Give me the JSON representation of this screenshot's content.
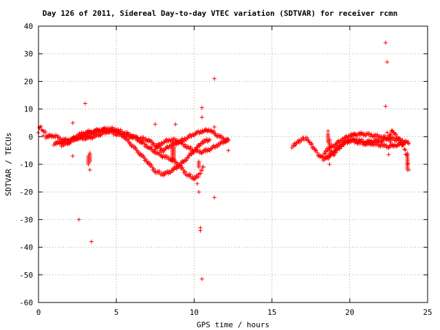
{
  "chart_data": {
    "type": "scatter",
    "title": "Day 126 of 2011, Sidereal Day-to-day VTEC variation (SDTVAR) for receiver rcmn",
    "xlabel": "GPS time / hours",
    "ylabel": "SDTVAR / TECUs",
    "xlim": [
      0,
      25
    ],
    "ylim": [
      -60,
      40
    ],
    "xticks": [
      0,
      5,
      10,
      15,
      20,
      25
    ],
    "yticks": [
      -60,
      -50,
      -40,
      -30,
      -20,
      -10,
      0,
      10,
      20,
      30,
      40
    ],
    "grid": true,
    "legend": "none",
    "marker": "+",
    "series": [
      {
        "color": "#ff0000",
        "tracks": [
          [
            [
              0.0,
              2.0
            ],
            [
              0.1,
              4.0
            ],
            [
              0.2,
              3.0
            ],
            [
              0.3,
              1.0
            ],
            [
              0.4,
              2.5
            ],
            [
              0.5,
              0.0
            ]
          ],
          [
            [
              0.5,
              0.0
            ],
            [
              1.0,
              0.5
            ],
            [
              1.5,
              -1.0
            ],
            [
              2.0,
              -1.5
            ],
            [
              2.5,
              0.5
            ],
            [
              3.0,
              1.5
            ],
            [
              3.5,
              2.0
            ],
            [
              4.0,
              2.5
            ],
            [
              4.5,
              3.0
            ],
            [
              5.0,
              2.5
            ],
            [
              5.5,
              1.5
            ],
            [
              6.0,
              0.5
            ],
            [
              6.5,
              -1.5
            ],
            [
              7.0,
              -3.5
            ],
            [
              7.5,
              -5.5
            ],
            [
              8.0,
              -7.0
            ],
            [
              8.5,
              -8.0
            ],
            [
              9.0,
              -10.0
            ],
            [
              9.5,
              -13.5
            ],
            [
              10.0,
              -15.0
            ],
            [
              10.3,
              -14.0
            ],
            [
              10.6,
              -11.0
            ]
          ],
          [
            [
              1.0,
              -2.5
            ],
            [
              1.5,
              -2.0
            ],
            [
              2.0,
              -1.0
            ],
            [
              2.5,
              -0.5
            ],
            [
              3.0,
              -0.5
            ],
            [
              3.5,
              0.0
            ],
            [
              4.0,
              1.0
            ],
            [
              4.5,
              2.0
            ],
            [
              5.0,
              2.5
            ],
            [
              5.5,
              0.0
            ],
            [
              6.0,
              -3.0
            ],
            [
              6.5,
              -6.0
            ],
            [
              7.0,
              -9.0
            ],
            [
              7.5,
              -12.5
            ],
            [
              8.0,
              -13.5
            ],
            [
              8.5,
              -12.5
            ],
            [
              9.0,
              -10.5
            ],
            [
              9.5,
              -8.0
            ],
            [
              10.0,
              -5.0
            ],
            [
              10.5,
              -2.0
            ],
            [
              11.0,
              -1.0
            ]
          ],
          [
            [
              1.5,
              -3.0
            ],
            [
              2.0,
              -2.0
            ],
            [
              2.5,
              -0.5
            ],
            [
              3.0,
              0.5
            ],
            [
              3.5,
              1.5
            ],
            [
              4.0,
              2.5
            ],
            [
              4.5,
              2.0
            ],
            [
              5.0,
              1.0
            ],
            [
              5.5,
              0.5
            ],
            [
              6.0,
              0.0
            ],
            [
              6.5,
              -0.5
            ],
            [
              7.0,
              -1.0
            ],
            [
              7.5,
              -3.0
            ],
            [
              8.0,
              -5.0
            ],
            [
              8.5,
              -3.0
            ],
            [
              9.0,
              -2.0
            ],
            [
              9.5,
              -0.5
            ],
            [
              10.0,
              1.0
            ],
            [
              10.5,
              2.0
            ],
            [
              11.0,
              2.5
            ],
            [
              11.5,
              0.5
            ],
            [
              12.0,
              -1.0
            ],
            [
              12.2,
              -1.5
            ]
          ],
          [
            [
              7.5,
              -4.0
            ],
            [
              8.0,
              -2.0
            ],
            [
              8.5,
              -1.0
            ],
            [
              9.0,
              -1.5
            ],
            [
              9.5,
              -3.5
            ],
            [
              10.0,
              -5.0
            ],
            [
              10.5,
              -5.5
            ],
            [
              11.0,
              -4.5
            ],
            [
              11.5,
              -3.0
            ],
            [
              12.0,
              -1.5
            ],
            [
              12.2,
              -1.0
            ]
          ],
          [
            [
              16.3,
              -3.5
            ],
            [
              16.5,
              -2.5
            ],
            [
              16.8,
              -1.5
            ],
            [
              17.0,
              -0.5
            ],
            [
              17.3,
              -1.0
            ],
            [
              17.6,
              -3.5
            ],
            [
              18.0,
              -6.5
            ],
            [
              18.3,
              -8.0
            ],
            [
              18.6,
              -7.5
            ],
            [
              19.0,
              -6.0
            ],
            [
              19.5,
              -3.0
            ],
            [
              20.0,
              -1.0
            ],
            [
              20.5,
              -2.0
            ],
            [
              21.0,
              -2.5
            ],
            [
              21.5,
              -2.5
            ],
            [
              22.0,
              -3.0
            ],
            [
              22.5,
              -3.5
            ],
            [
              23.0,
              -3.0
            ],
            [
              23.5,
              -2.5
            ]
          ],
          [
            [
              18.3,
              -6.5
            ],
            [
              18.6,
              -4.5
            ],
            [
              19.0,
              -3.0
            ],
            [
              19.5,
              -1.0
            ],
            [
              20.0,
              0.5
            ],
            [
              20.5,
              1.0
            ],
            [
              21.0,
              1.0
            ],
            [
              21.5,
              0.5
            ],
            [
              22.0,
              0.0
            ],
            [
              22.5,
              -0.5
            ],
            [
              23.0,
              -1.0
            ],
            [
              23.5,
              -1.5
            ],
            [
              23.8,
              -2.5
            ]
          ],
          [
            [
              18.6,
              -7.0
            ],
            [
              19.0,
              -5.0
            ],
            [
              19.5,
              -2.5
            ],
            [
              20.0,
              -1.5
            ],
            [
              20.5,
              -1.0
            ],
            [
              21.0,
              -2.0
            ],
            [
              21.5,
              -1.5
            ],
            [
              22.0,
              -1.5
            ],
            [
              22.5,
              -0.5
            ],
            [
              22.7,
              2.5
            ],
            [
              23.0,
              0.0
            ],
            [
              23.3,
              -1.5
            ],
            [
              23.5,
              -4.0
            ],
            [
              23.7,
              -8.0
            ],
            [
              23.8,
              -12.0
            ]
          ]
        ],
        "clusters": [
          [
            3.2,
            -10.0,
            -7.0
          ],
          [
            3.3,
            -9.0,
            -6.0
          ],
          [
            8.6,
            -9.0,
            -4.0
          ],
          [
            8.7,
            -8.0,
            -3.0
          ],
          [
            10.3,
            -11.0,
            -9.0
          ],
          [
            18.6,
            -2.0,
            1.0
          ],
          [
            18.7,
            -5.0,
            -1.0
          ],
          [
            22.6,
            -2.0,
            1.0
          ],
          [
            23.7,
            -12.0,
            -6.0
          ]
        ],
        "outliers": [
          [
            2.2,
            5.0
          ],
          [
            2.2,
            -7.0
          ],
          [
            2.6,
            -30.0
          ],
          [
            3.0,
            12.0
          ],
          [
            3.3,
            -12.0
          ],
          [
            3.4,
            -38.0
          ],
          [
            7.5,
            4.5
          ],
          [
            8.8,
            4.5
          ],
          [
            10.2,
            -17.0
          ],
          [
            10.3,
            -20.0
          ],
          [
            10.4,
            -33.0
          ],
          [
            10.4,
            -34.0
          ],
          [
            10.5,
            10.5
          ],
          [
            10.5,
            7.0
          ],
          [
            10.5,
            -51.5
          ],
          [
            11.3,
            21.0
          ],
          [
            11.3,
            3.5
          ],
          [
            11.3,
            -22.0
          ],
          [
            12.2,
            -5.0
          ],
          [
            18.6,
            2.0
          ],
          [
            18.7,
            -10.0
          ],
          [
            22.3,
            34.0
          ],
          [
            22.4,
            27.0
          ],
          [
            22.3,
            11.0
          ],
          [
            22.4,
            1.5
          ],
          [
            22.5,
            -6.5
          ]
        ]
      }
    ]
  }
}
